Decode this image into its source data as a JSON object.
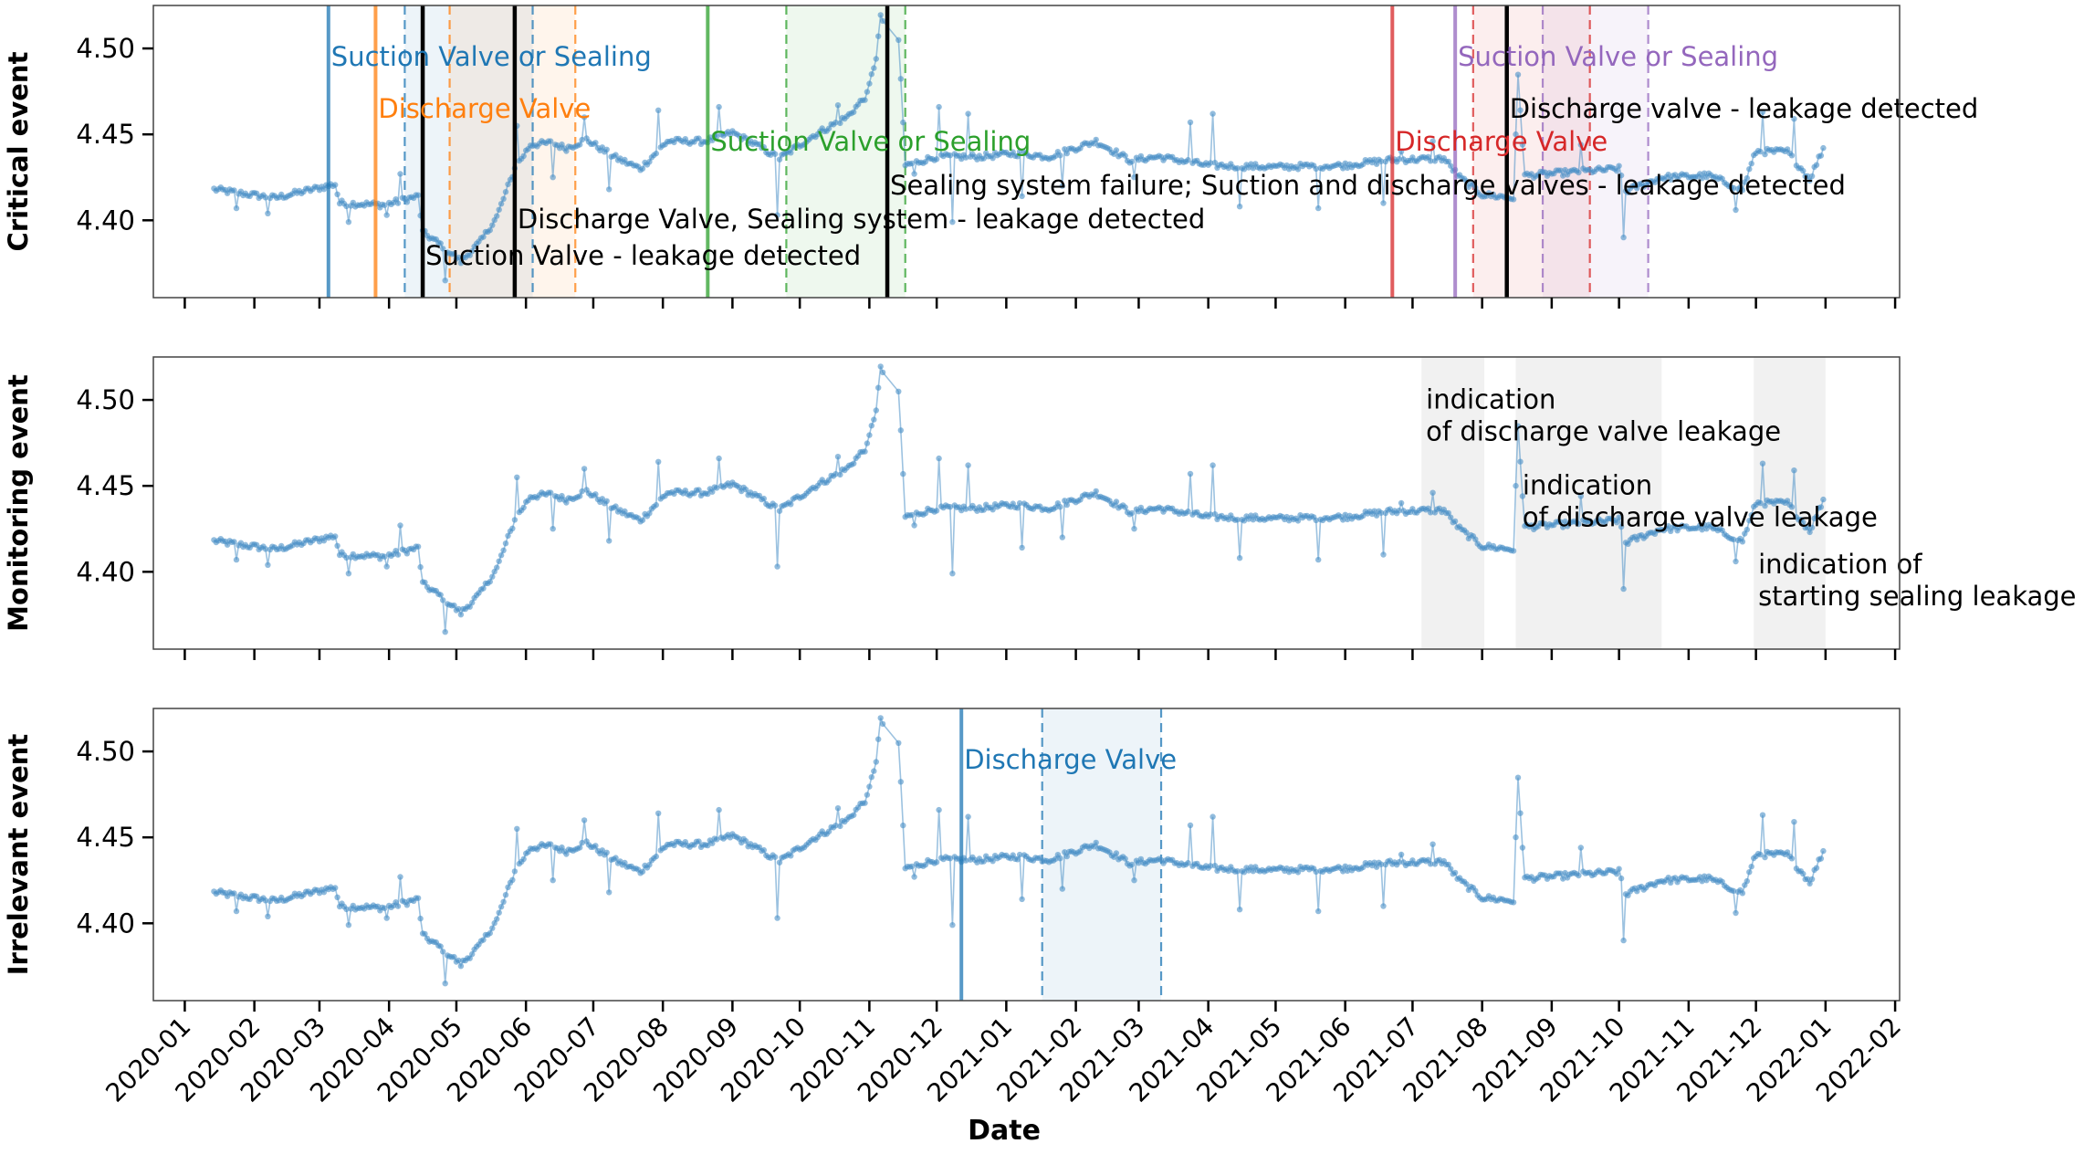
{
  "chart_data": {
    "type": "line",
    "xlabel": "Date",
    "x_ticks": [
      "2020-01",
      "2020-02",
      "2020-03",
      "2020-04",
      "2020-05",
      "2020-06",
      "2020-07",
      "2020-08",
      "2020-09",
      "2020-10",
      "2020-11",
      "2020-12",
      "2021-01",
      "2021-02",
      "2021-03",
      "2021-04",
      "2021-05",
      "2021-06",
      "2021-07",
      "2021-08",
      "2021-09",
      "2021-10",
      "2021-11",
      "2021-12",
      "2022-01",
      "2022-02"
    ],
    "xlim": [
      "2019-12-18",
      "2022-02-03"
    ],
    "ylim": [
      4.355,
      4.525
    ],
    "y_ticks": [
      4.4,
      4.45,
      4.5
    ],
    "grid": false,
    "series_color": "#4a8fc6",
    "series_keypoints": [
      [
        "2020-01-14",
        4.418
      ],
      [
        "2020-02-10",
        4.413
      ],
      [
        "2020-03-08",
        4.421
      ],
      [
        "2020-03-10",
        4.41
      ],
      [
        "2020-03-30",
        4.409
      ],
      [
        "2020-04-14",
        4.414
      ],
      [
        "2020-04-16",
        4.393
      ],
      [
        "2020-04-25",
        4.385
      ],
      [
        "2020-05-03",
        4.376
      ],
      [
        "2020-05-12",
        4.388
      ],
      [
        "2020-05-19",
        4.402
      ],
      [
        "2020-05-27",
        4.43
      ],
      [
        "2020-06-03",
        4.444
      ],
      [
        "2020-06-12",
        4.445
      ],
      [
        "2020-06-19",
        4.442
      ],
      [
        "2020-06-28",
        4.447
      ],
      [
        "2020-07-10",
        4.437
      ],
      [
        "2020-07-22",
        4.43
      ],
      [
        "2020-08-03",
        4.446
      ],
      [
        "2020-08-20",
        4.446
      ],
      [
        "2020-09-01",
        4.451
      ],
      [
        "2020-09-10",
        4.445
      ],
      [
        "2020-09-22",
        4.436
      ],
      [
        "2020-10-08",
        4.45
      ],
      [
        "2020-10-22",
        4.46
      ],
      [
        "2020-10-31",
        4.473
      ],
      [
        "2020-11-04",
        4.495
      ],
      [
        "2020-11-06",
        4.518
      ],
      [
        "2020-11-14",
        4.505
      ],
      [
        "2020-11-17",
        4.432
      ],
      [
        "2020-12-01",
        4.437
      ],
      [
        "2020-12-20",
        4.437
      ],
      [
        "2021-01-05",
        4.439
      ],
      [
        "2021-01-20",
        4.437
      ],
      [
        "2021-02-10",
        4.446
      ],
      [
        "2021-02-25",
        4.435
      ],
      [
        "2021-03-10",
        4.437
      ],
      [
        "2021-04-01",
        4.432
      ],
      [
        "2021-05-01",
        4.431
      ],
      [
        "2021-06-01",
        4.432
      ],
      [
        "2021-06-20",
        4.435
      ],
      [
        "2021-07-15",
        4.436
      ],
      [
        "2021-07-22",
        4.425
      ],
      [
        "2021-08-01",
        4.415
      ],
      [
        "2021-08-15",
        4.413
      ],
      [
        "2021-08-17",
        4.484
      ],
      [
        "2021-08-20",
        4.426
      ],
      [
        "2021-09-10",
        4.428
      ],
      [
        "2021-10-01",
        4.43
      ],
      [
        "2021-10-04",
        4.417
      ],
      [
        "2021-10-20",
        4.425
      ],
      [
        "2021-11-10",
        4.426
      ],
      [
        "2021-11-25",
        4.418
      ],
      [
        "2021-12-01",
        4.44
      ],
      [
        "2021-12-15",
        4.44
      ],
      [
        "2021-12-25",
        4.424
      ],
      [
        "2021-12-31",
        4.442
      ]
    ],
    "outliers": [
      [
        "2020-01-24",
        4.407
      ],
      [
        "2020-02-07",
        4.404
      ],
      [
        "2020-03-14",
        4.399
      ],
      [
        "2020-03-31",
        4.403
      ],
      [
        "2020-04-06",
        4.427
      ],
      [
        "2020-04-26",
        4.365
      ],
      [
        "2020-05-28",
        4.455
      ],
      [
        "2020-06-13",
        4.425
      ],
      [
        "2020-06-27",
        4.46
      ],
      [
        "2020-07-08",
        4.418
      ],
      [
        "2020-07-30",
        4.464
      ],
      [
        "2020-08-26",
        4.466
      ],
      [
        "2020-09-21",
        4.403
      ],
      [
        "2020-10-18",
        4.467
      ],
      [
        "2020-11-21",
        4.427
      ],
      [
        "2020-12-02",
        4.466
      ],
      [
        "2020-12-08",
        4.399
      ],
      [
        "2020-12-15",
        4.462
      ],
      [
        "2021-01-08",
        4.414
      ],
      [
        "2021-01-26",
        4.42
      ],
      [
        "2021-02-27",
        4.425
      ],
      [
        "2021-03-24",
        4.457
      ],
      [
        "2021-04-03",
        4.462
      ],
      [
        "2021-04-15",
        4.408
      ],
      [
        "2021-05-20",
        4.407
      ],
      [
        "2021-06-18",
        4.41
      ],
      [
        "2021-06-26",
        4.44
      ],
      [
        "2021-07-10",
        4.446
      ],
      [
        "2021-09-14",
        4.444
      ],
      [
        "2021-10-03",
        4.39
      ],
      [
        "2021-11-22",
        4.406
      ],
      [
        "2021-12-04",
        4.463
      ],
      [
        "2021-12-18",
        4.459
      ]
    ],
    "panels": [
      {
        "ylabel": "Critical event",
        "events": [
          {
            "x": "2020-03-05",
            "color": "#1f77b4",
            "style": "solid",
            "label": "Suction Valve or Sealing",
            "label_row": 1
          },
          {
            "x": "2020-03-26",
            "color": "#ff7f0e",
            "style": "solid",
            "label": "Discharge Valve",
            "label_row": 2
          },
          {
            "x": "2020-04-16",
            "color": "#000000",
            "style": "solid",
            "label": "Suction Valve - leakage detected",
            "label_row": 6
          },
          {
            "x": "2020-05-27",
            "color": "#000000",
            "style": "solid",
            "label": "Discharge Valve, Sealing system - leakage detected",
            "label_row": 5
          },
          {
            "x": "2020-08-21",
            "color": "#2ca02c",
            "style": "solid",
            "label": "Suction Valve or Sealing",
            "label_row": 3
          },
          {
            "x": "2020-11-09",
            "color": "#000000",
            "style": "solid",
            "label": "Sealing system failure; Suction and discharge valves - leakage detected",
            "label_row": 4
          },
          {
            "x": "2021-06-22",
            "color": "#d62728",
            "style": "solid",
            "label": "Discharge Valve",
            "label_row": 3
          },
          {
            "x": "2021-07-20",
            "color": "#9467bd",
            "style": "solid",
            "label": "Suction Valve or Sealing",
            "label_row": 1
          },
          {
            "x": "2021-08-12",
            "color": "#000000",
            "style": "solid",
            "label": "Discharge valve - leakage detected",
            "label_row": 2
          }
        ],
        "dashed_lines": [
          {
            "x": "2020-04-08",
            "color": "#1f77b4"
          },
          {
            "x": "2020-06-04",
            "color": "#1f77b4"
          },
          {
            "x": "2020-04-28",
            "color": "#ff7f0e"
          },
          {
            "x": "2020-06-23",
            "color": "#ff7f0e"
          },
          {
            "x": "2020-09-25",
            "color": "#2ca02c"
          },
          {
            "x": "2020-11-17",
            "color": "#2ca02c"
          },
          {
            "x": "2021-07-28",
            "color": "#d62728"
          },
          {
            "x": "2021-09-18",
            "color": "#d62728"
          },
          {
            "x": "2021-08-28",
            "color": "#9467bd"
          },
          {
            "x": "2021-10-14",
            "color": "#9467bd"
          }
        ],
        "spans": [
          {
            "from": "2020-04-08",
            "to": "2020-06-04",
            "color": "#1f77b4"
          },
          {
            "from": "2020-04-28",
            "to": "2020-06-23",
            "color": "#ff7f0e"
          },
          {
            "from": "2020-09-25",
            "to": "2020-11-17",
            "color": "#2ca02c"
          },
          {
            "from": "2021-07-28",
            "to": "2021-09-18",
            "color": "#d62728"
          },
          {
            "from": "2021-08-28",
            "to": "2021-10-14",
            "color": "#9467bd"
          }
        ],
        "annotations": []
      },
      {
        "ylabel": "Monitoring event",
        "events": [],
        "dashed_lines": [],
        "spans": [
          {
            "from": "2021-07-05",
            "to": "2021-08-02",
            "color": "#aaaaaa"
          },
          {
            "from": "2021-08-16",
            "to": "2021-10-20",
            "color": "#aaaaaa"
          },
          {
            "from": "2021-11-30",
            "to": "2022-01-01",
            "color": "#aaaaaa"
          }
        ],
        "annotations": [
          {
            "x": "2021-07-07",
            "y": 4.495,
            "lines": [
              "indication",
              "of discharge valve leakage"
            ]
          },
          {
            "x": "2021-08-19",
            "y": 4.445,
            "lines": [
              "indication",
              "of discharge valve leakage"
            ]
          },
          {
            "x": "2021-12-02",
            "y": 4.399,
            "lines": [
              "indication of",
              "starting sealing leakage"
            ]
          }
        ]
      },
      {
        "ylabel": "Irrelevant event",
        "events": [
          {
            "x": "2020-12-12",
            "color": "#1f77b4",
            "style": "solid",
            "label": "Discharge Valve",
            "label_row": 1
          }
        ],
        "dashed_lines": [
          {
            "x": "2021-01-17",
            "color": "#1f77b4"
          },
          {
            "x": "2021-03-11",
            "color": "#1f77b4"
          }
        ],
        "spans": [
          {
            "from": "2021-01-17",
            "to": "2021-03-11",
            "color": "#1f77b4"
          }
        ],
        "annotations": []
      }
    ]
  }
}
